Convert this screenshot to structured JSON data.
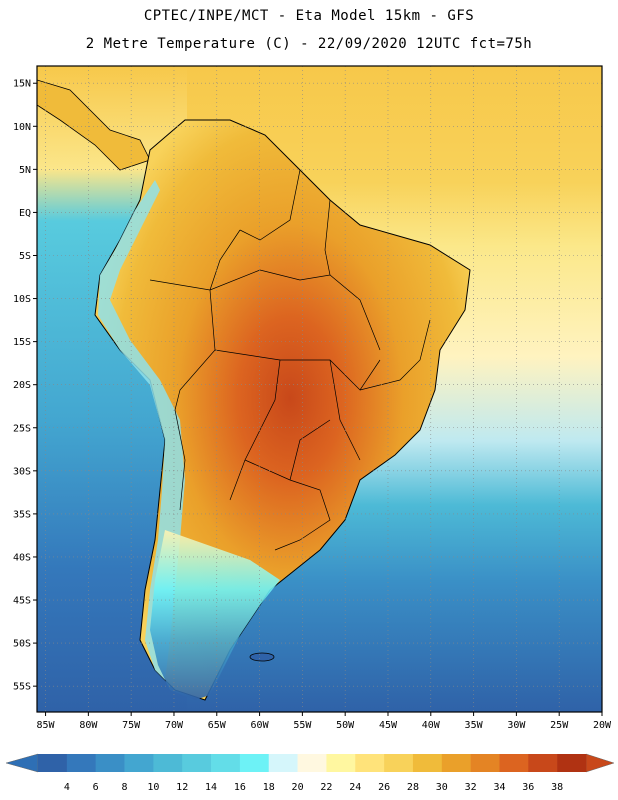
{
  "header": {
    "line1": "CPTEC/INPE/MCT -  Eta Model 15km - GFS",
    "line2": "2 Metre Temperature (C) - 22/09/2020 12UTC fct=75h"
  },
  "map": {
    "lat_ticks": [
      "15N",
      "10N",
      "5N",
      "EQ",
      "5S",
      "10S",
      "15S",
      "20S",
      "25S",
      "30S",
      "35S",
      "40S",
      "45S",
      "50S",
      "55S"
    ],
    "lon_ticks": [
      "85W",
      "80W",
      "75W",
      "70W",
      "65W",
      "60W",
      "55W",
      "50W",
      "45W",
      "40W",
      "35W",
      "30W",
      "25W",
      "20W"
    ],
    "lat_range": [
      17,
      -58
    ],
    "lon_range": [
      -86,
      -20
    ],
    "grid": "dotted"
  },
  "colorbar": {
    "labels": [
      "4",
      "6",
      "8",
      "10",
      "12",
      "14",
      "16",
      "18",
      "20",
      "22",
      "24",
      "26",
      "28",
      "30",
      "32",
      "34",
      "36",
      "38"
    ],
    "low_color": "#2e6fb5",
    "high_color": "#c8481a",
    "colors": [
      "#2f62a8",
      "#3478bb",
      "#3a8fc6",
      "#43a6d0",
      "#4dbad6",
      "#58cbde",
      "#63dde8",
      "#6df2f6",
      "#d5f6fb",
      "#fff8e0",
      "#fff7a0",
      "#ffe37a",
      "#f8d25a",
      "#f0bb3a",
      "#eaa02a",
      "#e48424",
      "#dc6420",
      "#c8481a",
      "#b03212"
    ]
  }
}
